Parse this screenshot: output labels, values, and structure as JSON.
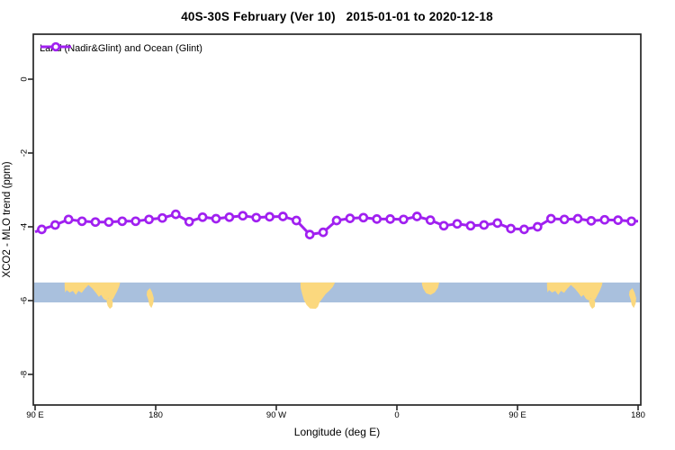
{
  "title": "40S-30S February (Ver 10)   2015-01-01 to 2020-12-18",
  "chart_data": {
    "type": "line",
    "title": "40S-30S February (Ver 10)   2015-01-01 to 2020-12-18",
    "xlabel": "Longitude (deg E)",
    "ylabel": "XCO2 - MLO trend (ppm)",
    "grid": false,
    "legend_position": "top-left",
    "x_axis_span_deg": [
      90,
      540
    ],
    "ylim": [
      -8.8,
      1.2
    ],
    "x_ticks": [
      {
        "deg": 90,
        "label": "90 E"
      },
      {
        "deg": 180,
        "label": "180"
      },
      {
        "deg": 270,
        "label": "90 W"
      },
      {
        "deg": 360,
        "label": "0"
      },
      {
        "deg": 450,
        "label": "90 E"
      },
      {
        "deg": 540,
        "label": "180"
      }
    ],
    "y_ticks": [
      {
        "v": 0,
        "label": "0"
      },
      {
        "v": -2,
        "label": "-2"
      },
      {
        "v": -4,
        "label": "-4"
      },
      {
        "v": -6,
        "label": "-6"
      },
      {
        "v": -8,
        "label": "-8"
      }
    ],
    "colors": {
      "series": "#A020F0",
      "marker_fill": "#ffffff",
      "ocean": "#a9c0dd",
      "land": "#fbd87e",
      "frame": "#262626",
      "text": "#000000"
    },
    "series": [
      {
        "name": "Land (Nadir&Glint) and Ocean (Glint)",
        "marker": "open-circle",
        "x_deg": [
          95,
          105,
          115,
          125,
          135,
          145,
          155,
          165,
          175,
          185,
          195,
          205,
          215,
          225,
          235,
          245,
          255,
          265,
          275,
          285,
          295,
          305,
          315,
          325,
          335,
          345,
          355,
          365,
          375,
          385,
          395,
          405,
          415,
          425,
          435,
          445,
          455,
          465,
          475,
          485,
          495,
          505,
          515,
          525,
          535
        ],
        "values": [
          -4.07,
          -3.95,
          -3.8,
          -3.85,
          -3.87,
          -3.87,
          -3.85,
          -3.85,
          -3.8,
          -3.76,
          -3.66,
          -3.86,
          -3.74,
          -3.78,
          -3.74,
          -3.7,
          -3.75,
          -3.73,
          -3.72,
          -3.83,
          -4.21,
          -4.15,
          -3.83,
          -3.77,
          -3.75,
          -3.79,
          -3.79,
          -3.8,
          -3.72,
          -3.82,
          -3.97,
          -3.92,
          -3.97,
          -3.95,
          -3.9,
          -4.05,
          -4.07,
          -4.0,
          -3.78,
          -3.8,
          -3.78,
          -3.84,
          -3.81,
          -3.82,
          -3.85
        ]
      }
    ],
    "edge_points": {
      "left": {
        "deg": 90,
        "value": -4.14
      },
      "right": {
        "deg": 540,
        "value": -3.85
      }
    },
    "map_strip": {
      "v_top": -5.51,
      "v_bottom": -6.05,
      "patches": [
        {
          "name": "australia",
          "lon_offset": 0,
          "pts": [
            [
              112,
              0
            ],
            [
              153.5,
              0
            ],
            [
              152.8,
              0.18
            ],
            [
              151.3,
              0.42
            ],
            [
              149.8,
              0.62
            ],
            [
              148.2,
              0.82
            ],
            [
              146.4,
              0.92
            ],
            [
              144.6,
              0.78
            ],
            [
              143.2,
              0.9
            ],
            [
              141.2,
              0.82
            ],
            [
              139.2,
              0.62
            ],
            [
              137.6,
              0.72
            ],
            [
              135.4,
              0.52
            ],
            [
              132.8,
              0.3
            ],
            [
              129.8,
              0.12
            ],
            [
              127.2,
              0.3
            ],
            [
              124.8,
              0.52
            ],
            [
              122.4,
              0.42
            ],
            [
              120.4,
              0.62
            ],
            [
              118.2,
              0.42
            ],
            [
              115.8,
              0.5
            ],
            [
              113.6,
              0.38
            ],
            [
              112.4,
              0.5
            ],
            [
              112,
              0.22
            ]
          ]
        },
        {
          "name": "tasmania",
          "lon_offset": 0,
          "pts": [
            [
              143.6,
              0.82
            ],
            [
              146.8,
              0.78
            ],
            [
              148.0,
              0.98
            ],
            [
              147.6,
              1.22
            ],
            [
              145.8,
              1.32
            ],
            [
              144.2,
              1.18
            ],
            [
              143.4,
              0.98
            ]
          ]
        },
        {
          "name": "new-zealand",
          "lon_offset": 0,
          "pts": [
            [
              173.6,
              0.42
            ],
            [
              175.8,
              0.28
            ],
            [
              177.4,
              0.5
            ],
            [
              178.6,
              0.78
            ],
            [
              178.2,
              1.05
            ],
            [
              176.8,
              1.28
            ],
            [
              175.2,
              1.12
            ],
            [
              174.4,
              0.85
            ],
            [
              173.2,
              0.62
            ]
          ]
        },
        {
          "name": "south-america",
          "lon_offset": 0,
          "pts": [
            [
              288,
              0
            ],
            [
              313.8,
              0
            ],
            [
              312.2,
              0.22
            ],
            [
              309.4,
              0.42
            ],
            [
              306.8,
              0.58
            ],
            [
              304.6,
              0.78
            ],
            [
              302.4,
              0.98
            ],
            [
              301,
              1.22
            ],
            [
              299.4,
              1.32
            ],
            [
              295.2,
              1.3
            ],
            [
              292.6,
              1.12
            ],
            [
              290.6,
              0.88
            ],
            [
              289.2,
              0.55
            ],
            [
              288.2,
              0.28
            ]
          ]
        },
        {
          "name": "southern-africa",
          "lon_offset": 0,
          "pts": [
            [
              378.6,
              0
            ],
            [
              391.6,
              0
            ],
            [
              390.6,
              0.26
            ],
            [
              388.2,
              0.5
            ],
            [
              385.2,
              0.62
            ],
            [
              381.8,
              0.54
            ],
            [
              379.6,
              0.3
            ],
            [
              378.8,
              0.12
            ]
          ]
        },
        {
          "name": "australia-repeat",
          "lon_offset": 360,
          "pts": [
            [
              112,
              0
            ],
            [
              153.5,
              0
            ],
            [
              152.8,
              0.18
            ],
            [
              151.3,
              0.42
            ],
            [
              149.8,
              0.62
            ],
            [
              148.2,
              0.82
            ],
            [
              146.4,
              0.92
            ],
            [
              144.6,
              0.78
            ],
            [
              143.2,
              0.9
            ],
            [
              141.2,
              0.82
            ],
            [
              139.2,
              0.62
            ],
            [
              137.6,
              0.72
            ],
            [
              135.4,
              0.52
            ],
            [
              132.8,
              0.3
            ],
            [
              129.8,
              0.12
            ],
            [
              127.2,
              0.3
            ],
            [
              124.8,
              0.52
            ],
            [
              122.4,
              0.42
            ],
            [
              120.4,
              0.62
            ],
            [
              118.2,
              0.42
            ],
            [
              115.8,
              0.5
            ],
            [
              113.6,
              0.38
            ],
            [
              112.4,
              0.5
            ],
            [
              112,
              0.22
            ]
          ]
        },
        {
          "name": "tasmania-repeat",
          "lon_offset": 360,
          "pts": [
            [
              143.6,
              0.82
            ],
            [
              146.8,
              0.78
            ],
            [
              148.0,
              0.98
            ],
            [
              147.6,
              1.22
            ],
            [
              145.8,
              1.32
            ],
            [
              144.2,
              1.18
            ],
            [
              143.4,
              0.98
            ]
          ]
        },
        {
          "name": "new-zealand-repeat",
          "lon_offset": 360,
          "pts": [
            [
              173.6,
              0.42
            ],
            [
              175.8,
              0.28
            ],
            [
              177.4,
              0.5
            ],
            [
              178.6,
              0.78
            ],
            [
              178.2,
              1.05
            ],
            [
              176.8,
              1.28
            ],
            [
              175.2,
              1.12
            ],
            [
              174.4,
              0.85
            ],
            [
              173.2,
              0.62
            ]
          ]
        }
      ]
    }
  }
}
